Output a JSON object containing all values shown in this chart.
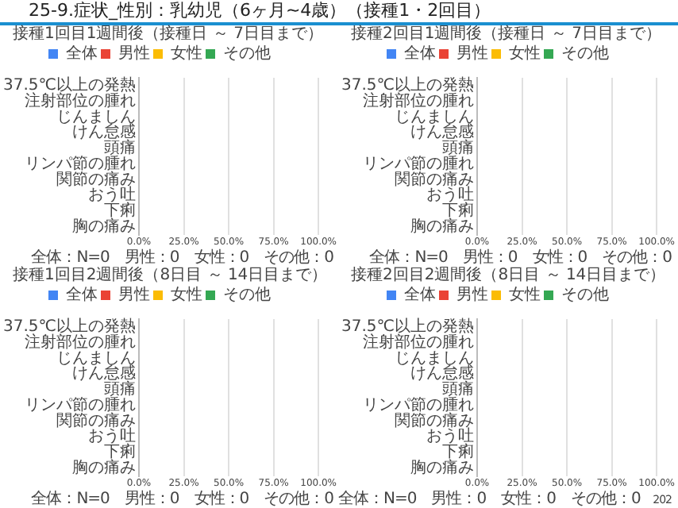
{
  "chart_data": [
    {
      "type": "bar",
      "title": "25-9.症状_性別：乳幼児（6ヶ月~4歳）（接種1・2回目）",
      "subtitle": "接種1回目1週間後（接種日 ～ 7日目まで）",
      "orientation": "horizontal",
      "categories": [
        "37.5℃以上の発熱",
        "注射部位の腫れ",
        "じんましん",
        "けん怠感",
        "頭痛",
        "リンパ節の腫れ",
        "関節の痛み",
        "おう吐",
        "下痢",
        "胸の痛み"
      ],
      "series": [
        {
          "name": "全体",
          "color": "#4285f4",
          "values": [
            0,
            0,
            0,
            0,
            0,
            0,
            0,
            0,
            0,
            0
          ]
        },
        {
          "name": "男性",
          "color": "#ea4335",
          "values": [
            0,
            0,
            0,
            0,
            0,
            0,
            0,
            0,
            0,
            0
          ]
        },
        {
          "name": "女性",
          "color": "#fbbc04",
          "values": [
            0,
            0,
            0,
            0,
            0,
            0,
            0,
            0,
            0,
            0
          ]
        },
        {
          "name": "その他",
          "color": "#34a853",
          "values": [
            0,
            0,
            0,
            0,
            0,
            0,
            0,
            0,
            0,
            0
          ]
        }
      ],
      "xlim": [
        0,
        100
      ],
      "xticks": [
        {
          "value": 0,
          "label": "0.0%"
        },
        {
          "value": 25,
          "label": "25.0%"
        },
        {
          "value": 50,
          "label": "50.0%"
        },
        {
          "value": 75,
          "label": "75.0%"
        },
        {
          "value": 100,
          "label": "100.0%"
        }
      ],
      "grid": "x",
      "legend": "top",
      "annotations": [
        "全体：N=0　男性：0　女性：0　その他：0"
      ]
    },
    {
      "type": "bar",
      "title": "接種2回目1週間後（接種日 ～ 7日目まで）",
      "orientation": "horizontal",
      "categories": [
        "37.5℃以上の発熱",
        "注射部位の腫れ",
        "じんましん",
        "けん怠感",
        "頭痛",
        "リンパ節の腫れ",
        "関節の痛み",
        "おう吐",
        "下痢",
        "胸の痛み"
      ],
      "series": [
        {
          "name": "全体",
          "color": "#4285f4",
          "values": [
            0,
            0,
            0,
            0,
            0,
            0,
            0,
            0,
            0,
            0
          ]
        },
        {
          "name": "男性",
          "color": "#ea4335",
          "values": [
            0,
            0,
            0,
            0,
            0,
            0,
            0,
            0,
            0,
            0
          ]
        },
        {
          "name": "女性",
          "color": "#fbbc04",
          "values": [
            0,
            0,
            0,
            0,
            0,
            0,
            0,
            0,
            0,
            0
          ]
        },
        {
          "name": "その他",
          "color": "#34a853",
          "values": [
            0,
            0,
            0,
            0,
            0,
            0,
            0,
            0,
            0,
            0
          ]
        }
      ],
      "xlim": [
        0,
        100
      ],
      "xticks": [
        {
          "value": 0,
          "label": "0.0%"
        },
        {
          "value": 25,
          "label": "25.0%"
        },
        {
          "value": 50,
          "label": "50.0%"
        },
        {
          "value": 75,
          "label": "75.0%"
        },
        {
          "value": 100,
          "label": "100.0%"
        }
      ],
      "grid": "x",
      "legend": "top",
      "annotations": [
        "全体：N=0　男性：0　女性：0　その他：0"
      ]
    },
    {
      "type": "bar",
      "title": "接種1回目2週間後（8日目 ～ 14日目まで）",
      "orientation": "horizontal",
      "categories": [
        "37.5℃以上の発熱",
        "注射部位の腫れ",
        "じんましん",
        "けん怠感",
        "頭痛",
        "リンパ節の腫れ",
        "関節の痛み",
        "おう吐",
        "下痢",
        "胸の痛み"
      ],
      "series": [
        {
          "name": "全体",
          "color": "#4285f4",
          "values": [
            0,
            0,
            0,
            0,
            0,
            0,
            0,
            0,
            0,
            0
          ]
        },
        {
          "name": "男性",
          "color": "#ea4335",
          "values": [
            0,
            0,
            0,
            0,
            0,
            0,
            0,
            0,
            0,
            0
          ]
        },
        {
          "name": "女性",
          "color": "#fbbc04",
          "values": [
            0,
            0,
            0,
            0,
            0,
            0,
            0,
            0,
            0,
            0
          ]
        },
        {
          "name": "その他",
          "color": "#34a853",
          "values": [
            0,
            0,
            0,
            0,
            0,
            0,
            0,
            0,
            0,
            0
          ]
        }
      ],
      "xlim": [
        0,
        100
      ],
      "xticks": [
        {
          "value": 0,
          "label": "0.0%"
        },
        {
          "value": 25,
          "label": "25.0%"
        },
        {
          "value": 50,
          "label": "50.0%"
        },
        {
          "value": 75,
          "label": "75.0%"
        },
        {
          "value": 100,
          "label": "100.0%"
        }
      ],
      "grid": "x",
      "legend": "top",
      "annotations": [
        "全体：N=0　男性：0　女性：0　その他：0"
      ]
    },
    {
      "type": "bar",
      "title": "接種2回目2週間後（8日目 ～ 14日目まで）",
      "orientation": "horizontal",
      "categories": [
        "37.5℃以上の発熱",
        "注射部位の腫れ",
        "じんましん",
        "けん怠感",
        "頭痛",
        "リンパ節の腫れ",
        "関節の痛み",
        "おう吐",
        "下痢",
        "胸の痛み"
      ],
      "series": [
        {
          "name": "全体",
          "color": "#4285f4",
          "values": [
            0,
            0,
            0,
            0,
            0,
            0,
            0,
            0,
            0,
            0
          ]
        },
        {
          "name": "男性",
          "color": "#ea4335",
          "values": [
            0,
            0,
            0,
            0,
            0,
            0,
            0,
            0,
            0,
            0
          ]
        },
        {
          "name": "女性",
          "color": "#fbbc04",
          "values": [
            0,
            0,
            0,
            0,
            0,
            0,
            0,
            0,
            0,
            0
          ]
        },
        {
          "name": "その他",
          "color": "#34a853",
          "values": [
            0,
            0,
            0,
            0,
            0,
            0,
            0,
            0,
            0,
            0
          ]
        }
      ],
      "xlim": [
        0,
        100
      ],
      "xticks": [
        {
          "value": 0,
          "label": "0.0%"
        },
        {
          "value": 25,
          "label": "25.0%"
        },
        {
          "value": 50,
          "label": "50.0%"
        },
        {
          "value": 75,
          "label": "75.0%"
        },
        {
          "value": 100,
          "label": "100.0%"
        }
      ],
      "grid": "x",
      "legend": "top",
      "annotations": [
        "全体：N=0　男性：0　女性：0　その他：0",
        "202"
      ]
    }
  ]
}
